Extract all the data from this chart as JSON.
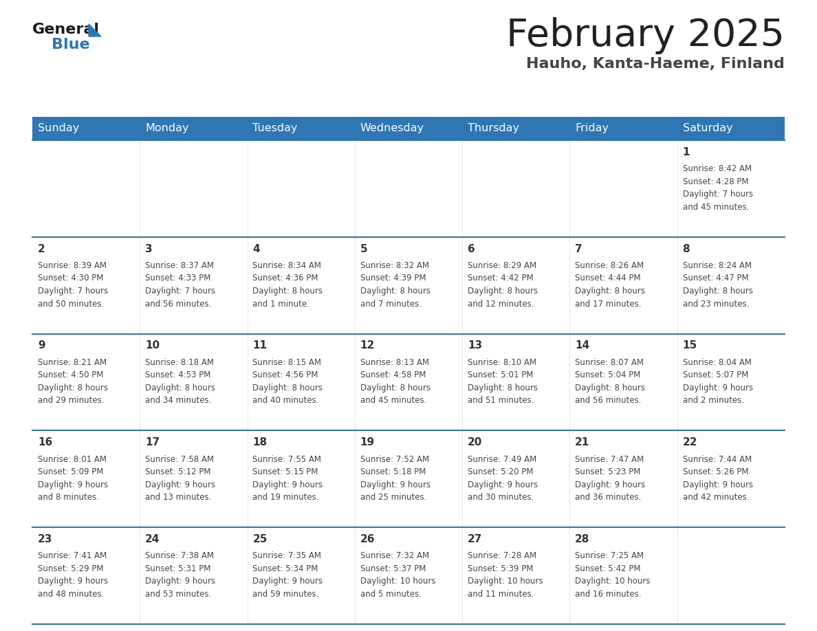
{
  "title": "February 2025",
  "subtitle": "Hauho, Kanta-Haeme, Finland",
  "header_color": "#2E76B4",
  "header_text_color": "#FFFFFF",
  "days_of_week": [
    "Sunday",
    "Monday",
    "Tuesday",
    "Wednesday",
    "Thursday",
    "Friday",
    "Saturday"
  ],
  "border_color": "#2E76B4",
  "day_number_color": "#333333",
  "info_text_color": "#444444",
  "title_color": "#222222",
  "subtitle_color": "#444444",
  "logo_general_color": "#1a1a1a",
  "logo_blue_color": "#2E76B4",
  "calendar": [
    [
      {
        "day": null,
        "info": null
      },
      {
        "day": null,
        "info": null
      },
      {
        "day": null,
        "info": null
      },
      {
        "day": null,
        "info": null
      },
      {
        "day": null,
        "info": null
      },
      {
        "day": null,
        "info": null
      },
      {
        "day": 1,
        "info": "Sunrise: 8:42 AM\nSunset: 4:28 PM\nDaylight: 7 hours\nand 45 minutes."
      }
    ],
    [
      {
        "day": 2,
        "info": "Sunrise: 8:39 AM\nSunset: 4:30 PM\nDaylight: 7 hours\nand 50 minutes."
      },
      {
        "day": 3,
        "info": "Sunrise: 8:37 AM\nSunset: 4:33 PM\nDaylight: 7 hours\nand 56 minutes."
      },
      {
        "day": 4,
        "info": "Sunrise: 8:34 AM\nSunset: 4:36 PM\nDaylight: 8 hours\nand 1 minute."
      },
      {
        "day": 5,
        "info": "Sunrise: 8:32 AM\nSunset: 4:39 PM\nDaylight: 8 hours\nand 7 minutes."
      },
      {
        "day": 6,
        "info": "Sunrise: 8:29 AM\nSunset: 4:42 PM\nDaylight: 8 hours\nand 12 minutes."
      },
      {
        "day": 7,
        "info": "Sunrise: 8:26 AM\nSunset: 4:44 PM\nDaylight: 8 hours\nand 17 minutes."
      },
      {
        "day": 8,
        "info": "Sunrise: 8:24 AM\nSunset: 4:47 PM\nDaylight: 8 hours\nand 23 minutes."
      }
    ],
    [
      {
        "day": 9,
        "info": "Sunrise: 8:21 AM\nSunset: 4:50 PM\nDaylight: 8 hours\nand 29 minutes."
      },
      {
        "day": 10,
        "info": "Sunrise: 8:18 AM\nSunset: 4:53 PM\nDaylight: 8 hours\nand 34 minutes."
      },
      {
        "day": 11,
        "info": "Sunrise: 8:15 AM\nSunset: 4:56 PM\nDaylight: 8 hours\nand 40 minutes."
      },
      {
        "day": 12,
        "info": "Sunrise: 8:13 AM\nSunset: 4:58 PM\nDaylight: 8 hours\nand 45 minutes."
      },
      {
        "day": 13,
        "info": "Sunrise: 8:10 AM\nSunset: 5:01 PM\nDaylight: 8 hours\nand 51 minutes."
      },
      {
        "day": 14,
        "info": "Sunrise: 8:07 AM\nSunset: 5:04 PM\nDaylight: 8 hours\nand 56 minutes."
      },
      {
        "day": 15,
        "info": "Sunrise: 8:04 AM\nSunset: 5:07 PM\nDaylight: 9 hours\nand 2 minutes."
      }
    ],
    [
      {
        "day": 16,
        "info": "Sunrise: 8:01 AM\nSunset: 5:09 PM\nDaylight: 9 hours\nand 8 minutes."
      },
      {
        "day": 17,
        "info": "Sunrise: 7:58 AM\nSunset: 5:12 PM\nDaylight: 9 hours\nand 13 minutes."
      },
      {
        "day": 18,
        "info": "Sunrise: 7:55 AM\nSunset: 5:15 PM\nDaylight: 9 hours\nand 19 minutes."
      },
      {
        "day": 19,
        "info": "Sunrise: 7:52 AM\nSunset: 5:18 PM\nDaylight: 9 hours\nand 25 minutes."
      },
      {
        "day": 20,
        "info": "Sunrise: 7:49 AM\nSunset: 5:20 PM\nDaylight: 9 hours\nand 30 minutes."
      },
      {
        "day": 21,
        "info": "Sunrise: 7:47 AM\nSunset: 5:23 PM\nDaylight: 9 hours\nand 36 minutes."
      },
      {
        "day": 22,
        "info": "Sunrise: 7:44 AM\nSunset: 5:26 PM\nDaylight: 9 hours\nand 42 minutes."
      }
    ],
    [
      {
        "day": 23,
        "info": "Sunrise: 7:41 AM\nSunset: 5:29 PM\nDaylight: 9 hours\nand 48 minutes."
      },
      {
        "day": 24,
        "info": "Sunrise: 7:38 AM\nSunset: 5:31 PM\nDaylight: 9 hours\nand 53 minutes."
      },
      {
        "day": 25,
        "info": "Sunrise: 7:35 AM\nSunset: 5:34 PM\nDaylight: 9 hours\nand 59 minutes."
      },
      {
        "day": 26,
        "info": "Sunrise: 7:32 AM\nSunset: 5:37 PM\nDaylight: 10 hours\nand 5 minutes."
      },
      {
        "day": 27,
        "info": "Sunrise: 7:28 AM\nSunset: 5:39 PM\nDaylight: 10 hours\nand 11 minutes."
      },
      {
        "day": 28,
        "info": "Sunrise: 7:25 AM\nSunset: 5:42 PM\nDaylight: 10 hours\nand 16 minutes."
      },
      {
        "day": null,
        "info": null
      }
    ]
  ]
}
